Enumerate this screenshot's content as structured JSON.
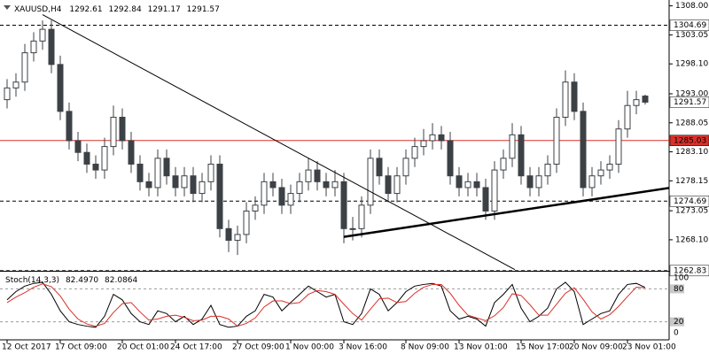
{
  "chart_data": {
    "type": "candlestick",
    "title": "XAUUSD,H4",
    "categories": [
      "12 Oct 2017",
      null,
      null,
      null,
      null,
      null,
      "17 Oct 09:00",
      null,
      null,
      null,
      null,
      null,
      null,
      "20 Oct 01:00",
      null,
      null,
      null,
      null,
      null,
      "24 Oct 17:00",
      null,
      null,
      null,
      null,
      null,
      null,
      "27 Oct 09:00",
      null,
      null,
      null,
      null,
      null,
      "1 Nov 00:00",
      null,
      null,
      null,
      null,
      null,
      "3 Nov 16:00",
      null,
      null,
      null,
      null,
      null,
      null,
      "8 Nov 09:00",
      null,
      null,
      null,
      null,
      null,
      "13 Nov 01:00",
      null,
      null,
      null,
      null,
      null,
      null,
      "15 Nov 17:00",
      null,
      null,
      null,
      null,
      null,
      "20 Nov 09:00",
      null,
      null,
      null,
      null,
      null,
      "23 Nov 01:00",
      null,
      null
    ],
    "open": [
      1292,
      1294,
      1295,
      1300,
      1302,
      1304,
      1298,
      1290,
      1285,
      1283,
      1281,
      1280,
      1284,
      1289,
      1285,
      1281,
      1278,
      1277,
      1282,
      1279,
      1277,
      1279,
      1276,
      1278,
      1281,
      1270,
      1268,
      1269,
      1273,
      1274,
      1278,
      1277,
      1274,
      1276,
      1278,
      1280,
      1278,
      1277,
      1278,
      1270,
      1270,
      1274,
      1282,
      1279,
      1276,
      1279,
      1282,
      1284,
      1285,
      1286,
      1285,
      1279,
      1277,
      1278,
      1277,
      1273,
      1280,
      1282,
      1286,
      1279,
      1277,
      1279,
      1281,
      1289,
      1295,
      1290,
      1277,
      1279,
      1280,
      1281,
      1287,
      1291,
      1292.61
    ],
    "high": [
      1295.5,
      1296.5,
      1301.5,
      1303.5,
      1305.5,
      1305.5,
      1299.5,
      1291.5,
      1286.5,
      1284.5,
      1282.5,
      1285.5,
      1291,
      1290.5,
      1286.5,
      1282.5,
      1279.5,
      1283.5,
      1283.5,
      1280.5,
      1280.5,
      1280.5,
      1279.5,
      1282.5,
      1282.5,
      1271.5,
      1270.5,
      1274.5,
      1275.5,
      1279.5,
      1279.5,
      1278.5,
      1277.5,
      1279.5,
      1282,
      1281.5,
      1279.5,
      1280,
      1279.5,
      1272,
      1275.5,
      1283.5,
      1283.5,
      1280.5,
      1280.5,
      1283.5,
      1285.5,
      1287,
      1288,
      1287.5,
      1286.5,
      1280.5,
      1279.5,
      1279.5,
      1278.5,
      1281.5,
      1283.5,
      1288,
      1287.5,
      1280.5,
      1280.5,
      1282.5,
      1290.5,
      1297,
      1296.5,
      1291.5,
      1280.5,
      1281.5,
      1282.5,
      1288.5,
      1293.5,
      1293.5,
      1292.84
    ],
    "low": [
      1290.5,
      1292.5,
      1293.5,
      1298.5,
      1300.5,
      1296.5,
      1288.5,
      1283.5,
      1281.5,
      1279.5,
      1278.5,
      1278.5,
      1282.5,
      1283.5,
      1279.5,
      1276.5,
      1275.5,
      1275.5,
      1277.5,
      1275.5,
      1275.5,
      1274.5,
      1274.5,
      1276.5,
      1268.5,
      1266,
      1265.5,
      1267.5,
      1271.5,
      1272.5,
      1275.5,
      1272.5,
      1272.5,
      1274.5,
      1276.5,
      1276.5,
      1275.5,
      1275.5,
      1267.5,
      1268,
      1268.5,
      1272.5,
      1277.5,
      1274.5,
      1274.5,
      1277.5,
      1280.5,
      1282.5,
      1283.5,
      1283.5,
      1277.5,
      1275.5,
      1275.5,
      1275.5,
      1271.5,
      1271.5,
      1278.5,
      1280.5,
      1277.5,
      1275.5,
      1275.5,
      1277.5,
      1279.5,
      1287.5,
      1288.5,
      1275.5,
      1275.5,
      1277.5,
      1278.5,
      1279.5,
      1285.5,
      1289.5,
      1291.17
    ],
    "close": [
      1294,
      1295,
      1300,
      1302,
      1304,
      1298,
      1290,
      1285,
      1283,
      1281,
      1280,
      1284,
      1289,
      1285,
      1281,
      1278,
      1277,
      1282,
      1279,
      1277,
      1279,
      1276,
      1278,
      1281,
      1270,
      1268,
      1269,
      1273,
      1274,
      1278,
      1277,
      1274,
      1276,
      1278,
      1280,
      1278,
      1277,
      1278,
      1270,
      1270,
      1274,
      1282,
      1279,
      1276,
      1279,
      1282,
      1284,
      1285,
      1286,
      1285,
      1279,
      1277,
      1278,
      1277,
      1273,
      1280,
      1282,
      1286,
      1279,
      1277,
      1279,
      1281,
      1289,
      1295,
      1290,
      1277,
      1279,
      1280,
      1281,
      1287,
      1291,
      1292,
      1291.57
    ],
    "color": "#3c4146",
    "ylim": [
      1262.5,
      1309
    ],
    "yticks": [
      {
        "value": 1308,
        "label": "1308.00"
      },
      1303.05,
      {
        "value": 1298.1,
        "label": "1298.10"
      },
      {
        "value": 1293,
        "label": "1293.00"
      },
      1288.05,
      {
        "value": 1283.1,
        "label": "1283.10"
      },
      1278.15,
      1273.05,
      {
        "value": 1268.1,
        "label": "1268.10"
      }
    ],
    "levels": [
      {
        "value": 1304.69,
        "color": "#000000",
        "dashed": true
      },
      {
        "value": 1285.03,
        "color": "#d9302a",
        "dashed": false
      },
      {
        "value": 1274.69,
        "color": "#000000",
        "dashed": true
      },
      {
        "value": 1262.83,
        "color": "#000000",
        "dashed": true
      }
    ],
    "trendlines": [
      {
        "x": [
          4,
          57.3
        ],
        "y": [
          1306.5,
          1263
        ],
        "color": "#000000",
        "width": 1
      },
      {
        "x": [
          38,
          78.5
        ],
        "y": [
          1268.6,
          1277.8
        ],
        "color": "#000000",
        "width": 2.5
      }
    ],
    "stoch": {
      "title": "Stoch(14,3,3)",
      "ylim": [
        0,
        100
      ],
      "yticks": [
        100,
        80,
        20,
        0
      ],
      "levels": [
        80,
        20
      ],
      "series": [
        {
          "color": "#000000",
          "last_label": "82.4970",
          "values": [
            60,
            75,
            85,
            90,
            92,
            70,
            40,
            20,
            15,
            12,
            10,
            30,
            70,
            60,
            35,
            20,
            15,
            40,
            35,
            20,
            30,
            15,
            25,
            50,
            15,
            10,
            12,
            30,
            40,
            70,
            65,
            40,
            55,
            70,
            85,
            75,
            65,
            70,
            20,
            15,
            35,
            80,
            70,
            40,
            55,
            75,
            85,
            88,
            90,
            85,
            40,
            25,
            30,
            25,
            12,
            55,
            70,
            88,
            45,
            20,
            30,
            45,
            80,
            92,
            75,
            15,
            25,
            35,
            40,
            70,
            88,
            90,
            82.497
          ]
        },
        {
          "color": "#d9302a",
          "last_label": "82.0864",
          "values": [
            55,
            65,
            73,
            83,
            89,
            84,
            67,
            43,
            25,
            16,
            12,
            17,
            37,
            53,
            55,
            38,
            23,
            25,
            30,
            32,
            28,
            22,
            23,
            30,
            30,
            25,
            12,
            17,
            27,
            47,
            58,
            58,
            53,
            55,
            70,
            77,
            75,
            70,
            52,
            35,
            23,
            43,
            62,
            63,
            55,
            57,
            72,
            83,
            88,
            88,
            72,
            50,
            32,
            27,
            22,
            31,
            46,
            71,
            68,
            51,
            32,
            32,
            52,
            72,
            82,
            61,
            38,
            25,
            33,
            48,
            66,
            83,
            82.0864
          ]
        }
      ]
    }
  }
}
